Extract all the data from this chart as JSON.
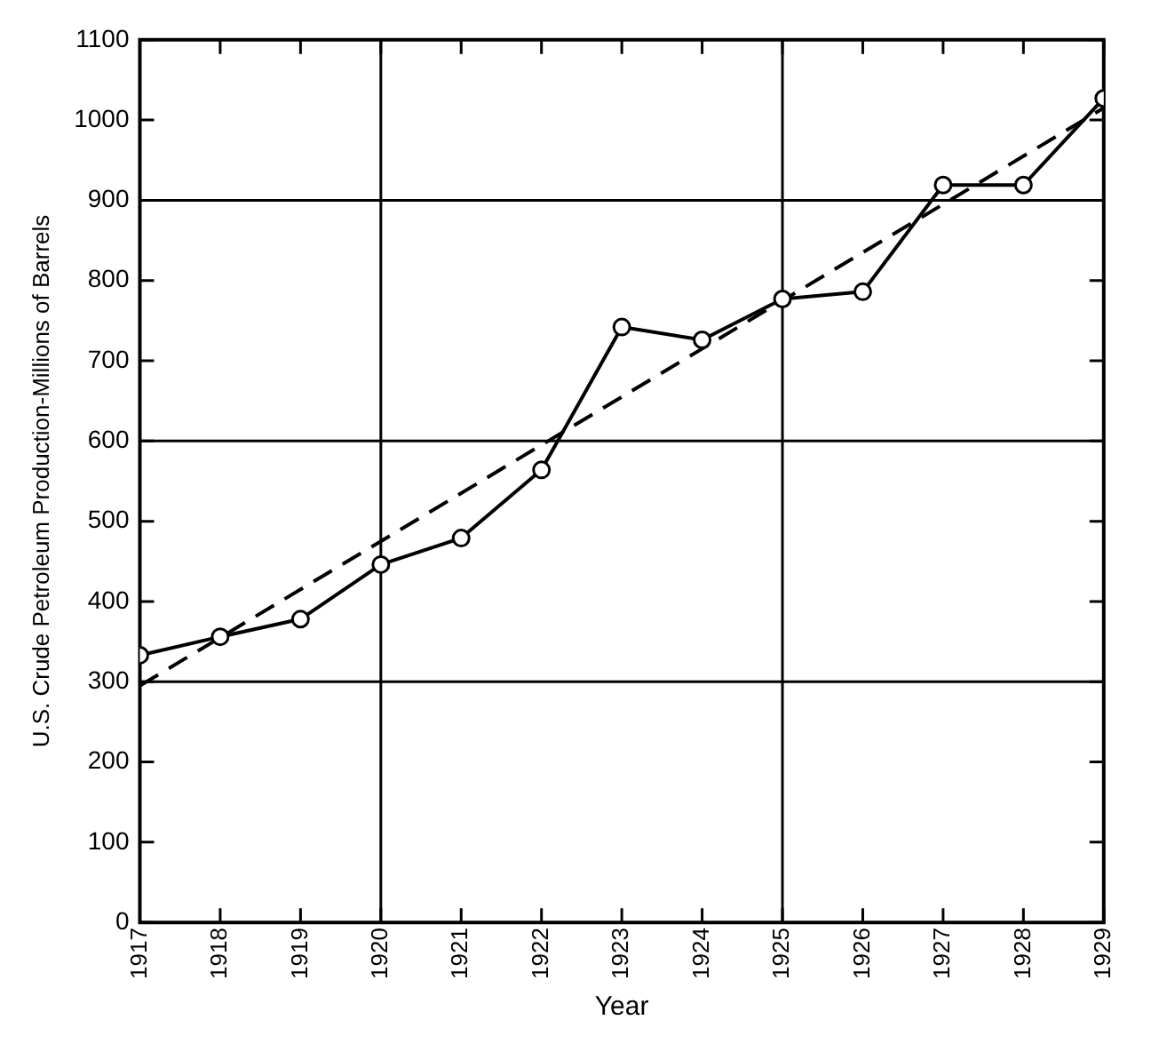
{
  "chart_data": {
    "type": "line",
    "xlabel": "Year",
    "ylabel": "U.S. Crude Petroleum Production-Millions of Barrels",
    "x": [
      1917,
      1918,
      1919,
      1920,
      1921,
      1922,
      1923,
      1924,
      1925,
      1926,
      1927,
      1928,
      1929
    ],
    "series": [
      {
        "color": "#000000",
        "marker": "circle",
        "line_style": "solid",
        "values": [
          333,
          356,
          378,
          446,
          479,
          564,
          742,
          726,
          777,
          786,
          919,
          919,
          1027
        ]
      },
      {
        "color": "#000000",
        "marker": "none",
        "line_style": "dashed",
        "x": [
          1917,
          1929
        ],
        "values": [
          295,
          1015
        ]
      }
    ],
    "xlim": [
      1917,
      1929
    ],
    "xticks": [
      1917,
      1918,
      1919,
      1920,
      1921,
      1922,
      1923,
      1924,
      1925,
      1926,
      1927,
      1928,
      1929
    ],
    "ylim": [
      0,
      1100
    ],
    "yticks": [
      0,
      100,
      200,
      300,
      400,
      500,
      600,
      700,
      800,
      900,
      1000,
      1100
    ],
    "grid": false,
    "legend": false,
    "ref_lines": [
      {
        "axis": "y",
        "value": 300,
        "color": "#000000"
      },
      {
        "axis": "y",
        "value": 600,
        "color": "#000000"
      },
      {
        "axis": "y",
        "value": 900,
        "color": "#000000"
      },
      {
        "axis": "x",
        "value": 1920,
        "color": "#000000"
      },
      {
        "axis": "x",
        "value": 1925,
        "color": "#000000"
      }
    ]
  }
}
